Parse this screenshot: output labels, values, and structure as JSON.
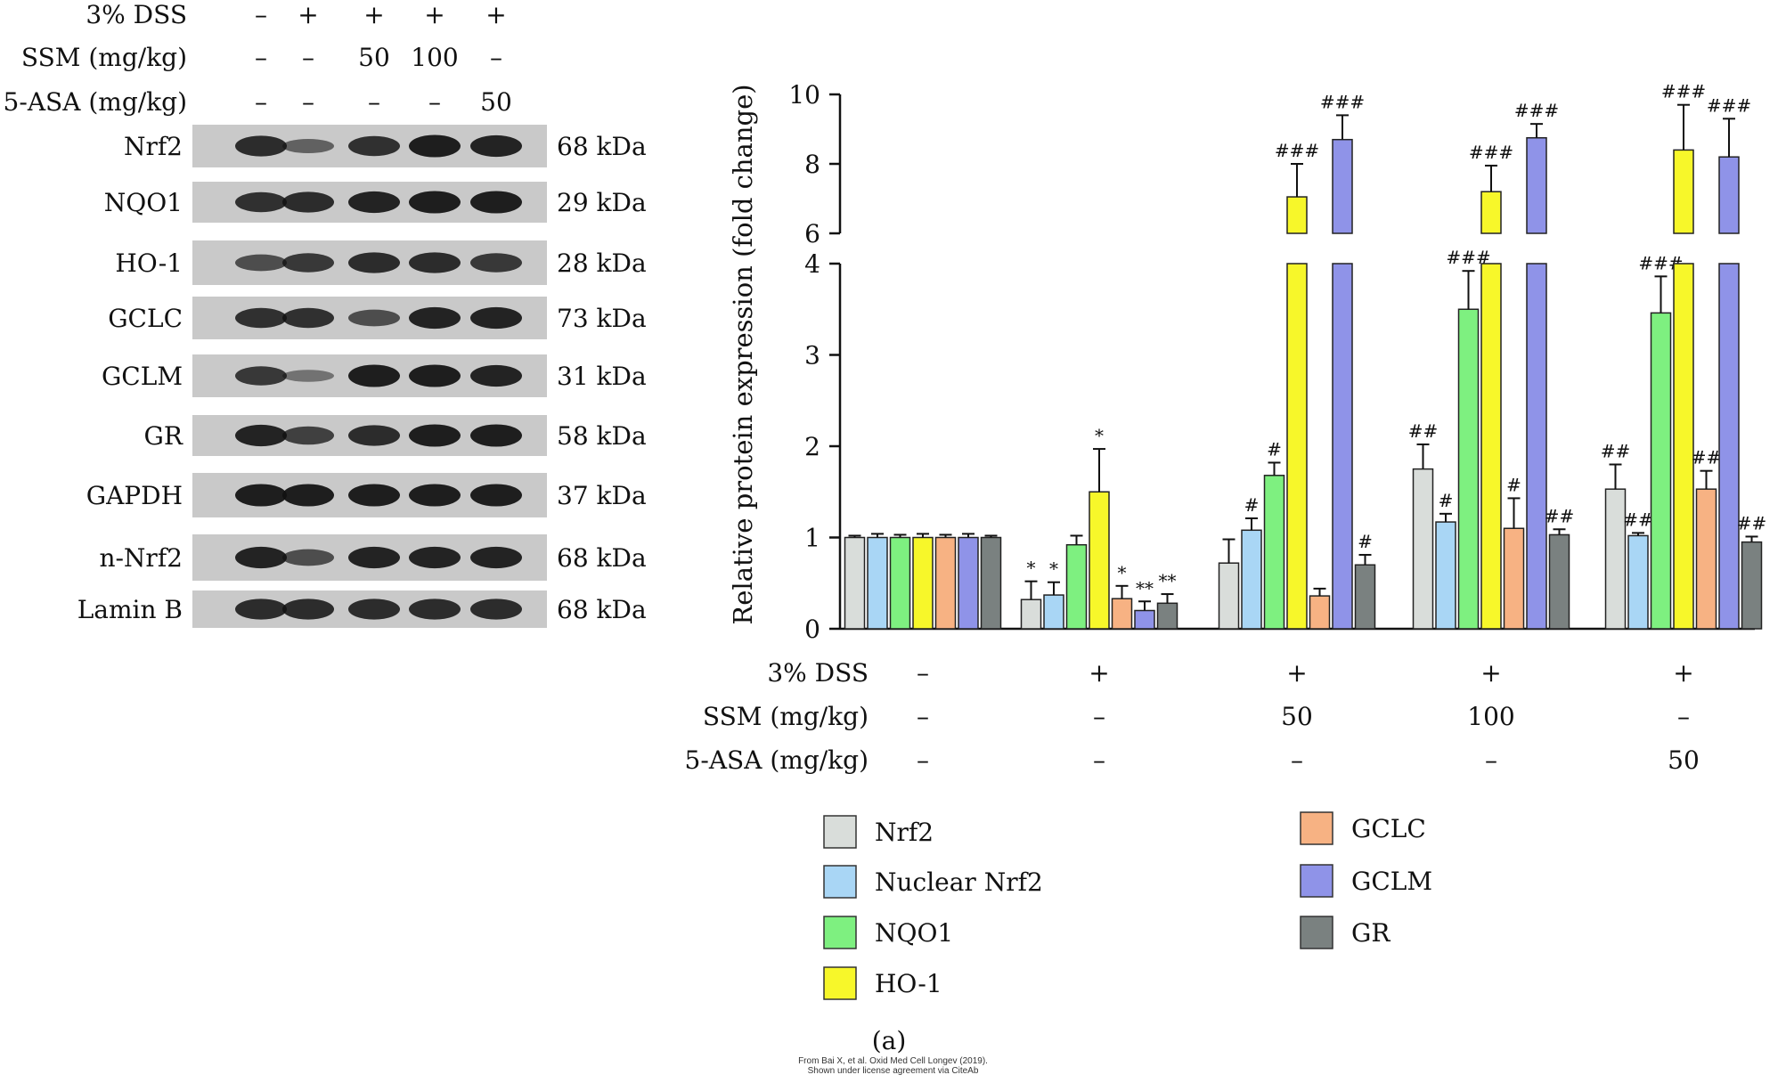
{
  "blot": {
    "condition_rows": [
      {
        "label": "3% DSS",
        "values": [
          "–",
          "+",
          "+",
          "+",
          "+"
        ]
      },
      {
        "label": "SSM (mg/kg)",
        "values": [
          "–",
          "–",
          "50",
          "100",
          "–"
        ]
      },
      {
        "label": "5-ASA (mg/kg)",
        "values": [
          "–",
          "–",
          "–",
          "–",
          "50"
        ]
      }
    ],
    "bands": [
      {
        "label": "Nrf2",
        "kda": "68 kDa",
        "intensity": [
          0.85,
          0.45,
          0.8,
          0.95,
          0.9
        ]
      },
      {
        "label": "NQO1",
        "kda": "29 kDa",
        "intensity": [
          0.8,
          0.85,
          0.9,
          0.95,
          0.95
        ]
      },
      {
        "label": "HO-1",
        "kda": "28 kDa",
        "intensity": [
          0.6,
          0.75,
          0.85,
          0.85,
          0.75
        ]
      },
      {
        "label": "GCLC",
        "kda": "73 kDa",
        "intensity": [
          0.8,
          0.8,
          0.6,
          0.9,
          0.9
        ]
      },
      {
        "label": "GCLM",
        "kda": "31 kDa",
        "intensity": [
          0.75,
          0.3,
          0.95,
          0.95,
          0.9
        ]
      },
      {
        "label": "GR",
        "kda": "58 kDa",
        "intensity": [
          0.9,
          0.7,
          0.85,
          0.95,
          0.95
        ]
      },
      {
        "label": "GAPDH",
        "kda": "37 kDa",
        "intensity": [
          0.95,
          0.95,
          0.95,
          0.95,
          0.95
        ]
      },
      {
        "label": "n-Nrf2",
        "kda": "68 kDa",
        "intensity": [
          0.9,
          0.6,
          0.9,
          0.9,
          0.9
        ]
      },
      {
        "label": "Lamin B",
        "kda": "68 kDa",
        "intensity": [
          0.85,
          0.85,
          0.85,
          0.85,
          0.85
        ]
      }
    ]
  },
  "chart_data": {
    "type": "bar",
    "ylabel": "Relative protein expression (fold change)",
    "y_axis_break": {
      "lower_range": [
        0,
        4
      ],
      "upper_range": [
        6,
        10
      ]
    },
    "lower_ticks": [
      "0",
      "1",
      "2",
      "3",
      "4"
    ],
    "upper_ticks": [
      "6",
      "8",
      "10"
    ],
    "groups": [
      "1",
      "2",
      "3",
      "4",
      "5"
    ],
    "group_conditions": [
      {
        "label": "3% DSS",
        "values": [
          "–",
          "+",
          "+",
          "+",
          "+"
        ]
      },
      {
        "label": "SSM (mg/kg)",
        "values": [
          "–",
          "–",
          "50",
          "100",
          "–"
        ]
      },
      {
        "label": "5-ASA (mg/kg)",
        "values": [
          "–",
          "–",
          "–",
          "–",
          "50"
        ]
      }
    ],
    "series": [
      {
        "name": "Nrf2",
        "color": "#d9ddda",
        "values": [
          1.0,
          0.32,
          0.72,
          1.75,
          1.53
        ],
        "errors": [
          0.02,
          0.2,
          0.26,
          0.27,
          0.27
        ],
        "marks": [
          "",
          "*",
          "",
          "##",
          "##"
        ]
      },
      {
        "name": "Nuclear Nrf2",
        "color": "#a9d6f5",
        "values": [
          1.0,
          0.37,
          1.08,
          1.17,
          1.02
        ],
        "errors": [
          0.04,
          0.14,
          0.13,
          0.09,
          0.03
        ],
        "marks": [
          "",
          "*",
          "#",
          "#",
          "##"
        ]
      },
      {
        "name": "NQO1",
        "color": "#7ef080",
        "values": [
          1.0,
          0.92,
          1.68,
          3.5,
          3.46
        ],
        "errors": [
          0.03,
          0.1,
          0.14,
          0.42,
          0.4
        ],
        "marks": [
          "",
          "",
          "#",
          "###",
          "###"
        ]
      },
      {
        "name": "HO-1",
        "color": "#f7f72a",
        "values": [
          1.0,
          1.5,
          7.05,
          7.2,
          8.4
        ],
        "errors": [
          0.04,
          0.47,
          0.95,
          0.75,
          1.3
        ],
        "marks": [
          "",
          "*",
          "###",
          "###",
          "###"
        ]
      },
      {
        "name": "GCLC",
        "color": "#f7b283",
        "values": [
          1.0,
          0.33,
          0.36,
          1.1,
          1.53
        ],
        "errors": [
          0.03,
          0.14,
          0.08,
          0.33,
          0.2
        ],
        "marks": [
          "",
          "*",
          "",
          "#",
          "##"
        ]
      },
      {
        "name": "GCLM",
        "color": "#8f93e8",
        "values": [
          1.0,
          0.2,
          8.7,
          8.75,
          8.2
        ],
        "errors": [
          0.04,
          0.1,
          0.7,
          0.4,
          1.1
        ],
        "marks": [
          "",
          "**",
          "###",
          "###",
          "###"
        ]
      },
      {
        "name": "GR",
        "color": "#7a8180",
        "values": [
          1.0,
          0.28,
          0.7,
          1.03,
          0.95
        ],
        "errors": [
          0.02,
          0.1,
          0.11,
          0.06,
          0.06
        ],
        "marks": [
          "",
          "**",
          "#",
          "##",
          "##"
        ]
      }
    ]
  },
  "panel_label": "(a)",
  "credit": {
    "line1": "From Bai X, et al. Oxid Med Cell Longev (2019).",
    "line2": "Shown under license agreement via CiteAb"
  },
  "colors": {
    "axis": "#111111",
    "bar_outline": "#222222",
    "blot_bg": "#c9c9c9",
    "band": "#111111"
  }
}
